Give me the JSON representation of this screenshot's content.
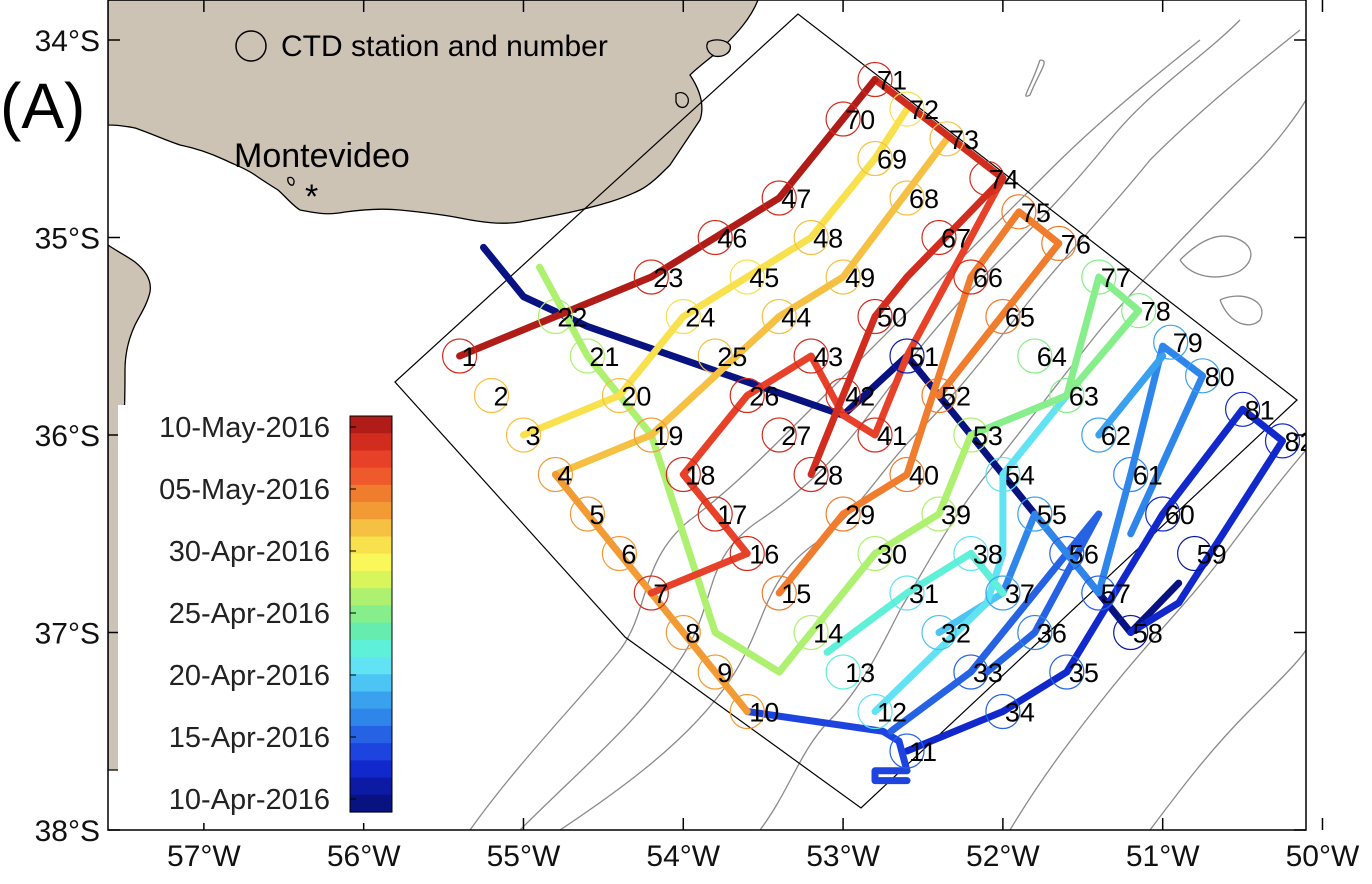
{
  "panel_label": "(A)",
  "legend": {
    "label": "CTD station and number"
  },
  "place_label": "Montevideo",
  "place_marker": "*",
  "axes": {
    "lon_range": [
      -57.6,
      -50.0
    ],
    "lat_range": [
      -38.0,
      -33.8
    ],
    "x_ticks": [
      {
        "lon": -57,
        "label": "57°W"
      },
      {
        "lon": -56,
        "label": "56°W"
      },
      {
        "lon": -55,
        "label": "55°W"
      },
      {
        "lon": -54,
        "label": "54°W"
      },
      {
        "lon": -53,
        "label": "53°W"
      },
      {
        "lon": -52,
        "label": "52°W"
      },
      {
        "lon": -51,
        "label": "51°W"
      },
      {
        "lon": -50,
        "label": "50°W"
      }
    ],
    "y_ticks": [
      {
        "lat": -34,
        "label": "34°S"
      },
      {
        "lat": -35,
        "label": "35°S"
      },
      {
        "lat": -36,
        "label": "36°S"
      },
      {
        "lat": -37,
        "label": "37°S"
      },
      {
        "lat": -38,
        "label": "38°S"
      }
    ]
  },
  "colorbar": {
    "labels": [
      "10-May-2016",
      "05-May-2016",
      "30-Apr-2016",
      "25-Apr-2016",
      "20-Apr-2016",
      "15-Apr-2016",
      "10-Apr-2016"
    ],
    "colors": [
      "#b01c18",
      "#d22c1e",
      "#e8412a",
      "#ee5a2b",
      "#f07c2e",
      "#f29b35",
      "#f6c042",
      "#f8e14c",
      "#f9f75a",
      "#d9f55c",
      "#aef170",
      "#86ee8a",
      "#65ecae",
      "#5ef0d8",
      "#62e3f3",
      "#4cc4f4",
      "#3aa1ef",
      "#2f86ea",
      "#2563e4",
      "#1d44de",
      "#1128cc",
      "#0c1aa4",
      "#081280"
    ],
    "colormap": "jet"
  },
  "colors": {
    "land": "#cdc3b4",
    "coast": "#000000",
    "contour": "#8a8a8a",
    "frame": "#000000"
  },
  "stations": [
    {
      "n": "1",
      "lon": -55.4,
      "lat": -35.6,
      "color": "#d22c1e"
    },
    {
      "n": "2",
      "lon": -55.2,
      "lat": -35.8,
      "color": "#f6c042"
    },
    {
      "n": "3",
      "lon": -55.0,
      "lat": -36.0,
      "color": "#f6c042"
    },
    {
      "n": "4",
      "lon": -54.8,
      "lat": -36.2,
      "color": "#f29b35"
    },
    {
      "n": "5",
      "lon": -54.6,
      "lat": -36.4,
      "color": "#f29b35"
    },
    {
      "n": "6",
      "lon": -54.4,
      "lat": -36.6,
      "color": "#f29b35"
    },
    {
      "n": "7",
      "lon": -54.2,
      "lat": -36.8,
      "color": "#d22c1e"
    },
    {
      "n": "8",
      "lon": -54.0,
      "lat": -37.0,
      "color": "#f29b35"
    },
    {
      "n": "9",
      "lon": -53.8,
      "lat": -37.2,
      "color": "#f29b35"
    },
    {
      "n": "10",
      "lon": -53.6,
      "lat": -37.4,
      "color": "#f29b35"
    },
    {
      "n": "11",
      "lon": -52.6,
      "lat": -37.6,
      "color": "#2563e4"
    },
    {
      "n": "12",
      "lon": -52.8,
      "lat": -37.4,
      "color": "#62e3f3"
    },
    {
      "n": "13",
      "lon": -53.0,
      "lat": -37.2,
      "color": "#5ef0d8"
    },
    {
      "n": "14",
      "lon": -53.2,
      "lat": -37.0,
      "color": "#aef170"
    },
    {
      "n": "15",
      "lon": -53.4,
      "lat": -36.8,
      "color": "#f07c2e"
    },
    {
      "n": "16",
      "lon": -53.6,
      "lat": -36.6,
      "color": "#d22c1e"
    },
    {
      "n": "17",
      "lon": -53.8,
      "lat": -36.4,
      "color": "#d22c1e"
    },
    {
      "n": "18",
      "lon": -54.0,
      "lat": -36.2,
      "color": "#d22c1e"
    },
    {
      "n": "19",
      "lon": -54.2,
      "lat": -36.0,
      "color": "#f29b35"
    },
    {
      "n": "20",
      "lon": -54.4,
      "lat": -35.8,
      "color": "#f6c042"
    },
    {
      "n": "21",
      "lon": -54.6,
      "lat": -35.6,
      "color": "#aef170"
    },
    {
      "n": "22",
      "lon": -54.8,
      "lat": -35.4,
      "color": "#aef170"
    },
    {
      "n": "23",
      "lon": -54.2,
      "lat": -35.2,
      "color": "#d22c1e"
    },
    {
      "n": "24",
      "lon": -54.0,
      "lat": -35.4,
      "color": "#f8e14c"
    },
    {
      "n": "25",
      "lon": -53.8,
      "lat": -35.6,
      "color": "#f6c042"
    },
    {
      "n": "26",
      "lon": -53.6,
      "lat": -35.8,
      "color": "#d22c1e"
    },
    {
      "n": "27",
      "lon": -53.4,
      "lat": -36.0,
      "color": "#d22c1e"
    },
    {
      "n": "28",
      "lon": -53.2,
      "lat": -36.2,
      "color": "#d22c1e"
    },
    {
      "n": "29",
      "lon": -53.0,
      "lat": -36.4,
      "color": "#f07c2e"
    },
    {
      "n": "30",
      "lon": -52.8,
      "lat": -36.6,
      "color": "#aef170"
    },
    {
      "n": "31",
      "lon": -52.6,
      "lat": -36.8,
      "color": "#62e3f3"
    },
    {
      "n": "32",
      "lon": -52.4,
      "lat": -37.0,
      "color": "#4cc4f4"
    },
    {
      "n": "33",
      "lon": -52.2,
      "lat": -37.2,
      "color": "#2563e4"
    },
    {
      "n": "34",
      "lon": -52.0,
      "lat": -37.4,
      "color": "#2563e4"
    },
    {
      "n": "35",
      "lon": -51.6,
      "lat": -37.2,
      "color": "#2563e4"
    },
    {
      "n": "36",
      "lon": -51.8,
      "lat": -37.0,
      "color": "#2f86ea"
    },
    {
      "n": "37",
      "lon": -52.0,
      "lat": -36.8,
      "color": "#3aa1ef"
    },
    {
      "n": "38",
      "lon": -52.2,
      "lat": -36.6,
      "color": "#62e3f3"
    },
    {
      "n": "39",
      "lon": -52.4,
      "lat": -36.4,
      "color": "#aef170"
    },
    {
      "n": "40",
      "lon": -52.6,
      "lat": -36.2,
      "color": "#f07c2e"
    },
    {
      "n": "41",
      "lon": -52.8,
      "lat": -36.0,
      "color": "#d22c1e"
    },
    {
      "n": "42",
      "lon": -53.0,
      "lat": -35.8,
      "color": "#d22c1e"
    },
    {
      "n": "43",
      "lon": -53.2,
      "lat": -35.6,
      "color": "#d22c1e"
    },
    {
      "n": "44",
      "lon": -53.4,
      "lat": -35.4,
      "color": "#f6c042"
    },
    {
      "n": "45",
      "lon": -53.6,
      "lat": -35.2,
      "color": "#f8e14c"
    },
    {
      "n": "46",
      "lon": -53.8,
      "lat": -35.0,
      "color": "#d22c1e"
    },
    {
      "n": "47",
      "lon": -53.4,
      "lat": -34.8,
      "color": "#d22c1e"
    },
    {
      "n": "48",
      "lon": -53.2,
      "lat": -35.0,
      "color": "#f6c042"
    },
    {
      "n": "49",
      "lon": -53.0,
      "lat": -35.2,
      "color": "#f6c042"
    },
    {
      "n": "50",
      "lon": -52.8,
      "lat": -35.4,
      "color": "#d22c1e"
    },
    {
      "n": "51",
      "lon": -52.6,
      "lat": -35.6,
      "color": "#0c1aa4"
    },
    {
      "n": "52",
      "lon": -52.4,
      "lat": -35.8,
      "color": "#f07c2e"
    },
    {
      "n": "53",
      "lon": -52.2,
      "lat": -36.0,
      "color": "#aef170"
    },
    {
      "n": "54",
      "lon": -52.0,
      "lat": -36.2,
      "color": "#62e3f3"
    },
    {
      "n": "55",
      "lon": -51.8,
      "lat": -36.4,
      "color": "#3aa1ef"
    },
    {
      "n": "56",
      "lon": -51.6,
      "lat": -36.6,
      "color": "#2563e4"
    },
    {
      "n": "57",
      "lon": -51.4,
      "lat": -36.8,
      "color": "#2563e4"
    },
    {
      "n": "58",
      "lon": -51.2,
      "lat": -37.0,
      "color": "#0c1aa4"
    },
    {
      "n": "59",
      "lon": -50.8,
      "lat": -36.6,
      "color": "#0c1aa4"
    },
    {
      "n": "60",
      "lon": -51.0,
      "lat": -36.4,
      "color": "#1128cc"
    },
    {
      "n": "61",
      "lon": -51.2,
      "lat": -36.2,
      "color": "#2f86ea"
    },
    {
      "n": "62",
      "lon": -51.4,
      "lat": -36.0,
      "color": "#3aa1ef"
    },
    {
      "n": "63",
      "lon": -51.6,
      "lat": -35.8,
      "color": "#86ee8a"
    },
    {
      "n": "64",
      "lon": -51.8,
      "lat": -35.6,
      "color": "#86ee8a"
    },
    {
      "n": "65",
      "lon": -52.0,
      "lat": -35.4,
      "color": "#f07c2e"
    },
    {
      "n": "66",
      "lon": -52.2,
      "lat": -35.2,
      "color": "#d22c1e"
    },
    {
      "n": "67",
      "lon": -52.4,
      "lat": -35.0,
      "color": "#d22c1e"
    },
    {
      "n": "68",
      "lon": -52.6,
      "lat": -34.8,
      "color": "#f6c042"
    },
    {
      "n": "69",
      "lon": -52.8,
      "lat": -34.6,
      "color": "#f6c042"
    },
    {
      "n": "70",
      "lon": -53.0,
      "lat": -34.4,
      "color": "#d22c1e"
    },
    {
      "n": "71",
      "lon": -52.8,
      "lat": -34.2,
      "color": "#d22c1e"
    },
    {
      "n": "72",
      "lon": -52.6,
      "lat": -34.35,
      "color": "#f8e14c"
    },
    {
      "n": "73",
      "lon": -52.35,
      "lat": -34.5,
      "color": "#f6c042"
    },
    {
      "n": "74",
      "lon": -52.1,
      "lat": -34.7,
      "color": "#d22c1e"
    },
    {
      "n": "75",
      "lon": -51.9,
      "lat": -34.87,
      "color": "#f07c2e"
    },
    {
      "n": "76",
      "lon": -51.65,
      "lat": -35.03,
      "color": "#f07c2e"
    },
    {
      "n": "77",
      "lon": -51.4,
      "lat": -35.2,
      "color": "#86ee8a"
    },
    {
      "n": "78",
      "lon": -51.15,
      "lat": -35.37,
      "color": "#86ee8a"
    },
    {
      "n": "79",
      "lon": -50.95,
      "lat": -35.53,
      "color": "#3aa1ef"
    },
    {
      "n": "80",
      "lon": -50.75,
      "lat": -35.7,
      "color": "#3aa1ef"
    },
    {
      "n": "81",
      "lon": -50.5,
      "lat": -35.87,
      "color": "#1128cc"
    },
    {
      "n": "82",
      "lon": -50.25,
      "lat": -36.03,
      "color": "#1128cc"
    }
  ],
  "tracks": [
    {
      "color": "#081280",
      "points": [
        [
          -55.25,
          -35.05
        ],
        [
          -55.0,
          -35.3
        ],
        [
          -54.6,
          -35.45
        ],
        [
          -53.0,
          -35.9
        ],
        [
          -52.6,
          -35.6
        ],
        [
          -51.6,
          -36.6
        ],
        [
          -51.2,
          -37.0
        ],
        [
          -50.9,
          -36.75
        ]
      ]
    },
    {
      "color": "#1128cc",
      "points": [
        [
          -52.6,
          -37.6
        ],
        [
          -52.0,
          -37.4
        ],
        [
          -51.6,
          -37.2
        ],
        [
          -51.0,
          -36.4
        ],
        [
          -50.5,
          -35.87
        ],
        [
          -50.25,
          -36.03
        ],
        [
          -50.9,
          -36.85
        ],
        [
          -51.2,
          -37.0
        ]
      ]
    },
    {
      "color": "#1d44de",
      "points": [
        [
          -53.6,
          -37.4
        ],
        [
          -52.75,
          -37.5
        ],
        [
          -52.65,
          -37.55
        ],
        [
          -52.6,
          -37.7
        ],
        [
          -52.8,
          -37.7
        ],
        [
          -52.8,
          -37.75
        ],
        [
          -52.6,
          -37.75
        ]
      ]
    },
    {
      "color": "#2563e4",
      "points": [
        [
          -52.7,
          -37.5
        ],
        [
          -52.2,
          -37.2
        ],
        [
          -51.6,
          -36.6
        ],
        [
          -51.4,
          -36.4
        ],
        [
          -51.8,
          -37.0
        ],
        [
          -52.1,
          -37.2
        ]
      ]
    },
    {
      "color": "#2f86ea",
      "points": [
        [
          -52.0,
          -36.8
        ],
        [
          -51.8,
          -36.4
        ],
        [
          -51.4,
          -36.8
        ],
        [
          -51.2,
          -36.2
        ],
        [
          -51.0,
          -35.55
        ],
        [
          -50.75,
          -35.7
        ],
        [
          -51.2,
          -36.5
        ]
      ]
    },
    {
      "color": "#3aa1ef",
      "points": [
        [
          -51.4,
          -36.0
        ],
        [
          -51.0,
          -35.6
        ]
      ]
    },
    {
      "color": "#4cc4f4",
      "points": [
        [
          -52.4,
          -37.0
        ],
        [
          -52.0,
          -36.8
        ],
        [
          -52.2,
          -36.6
        ]
      ]
    },
    {
      "color": "#62e3f3",
      "points": [
        [
          -52.8,
          -37.4
        ],
        [
          -52.1,
          -36.85
        ],
        [
          -52.0,
          -36.6
        ],
        [
          -52.0,
          -36.2
        ],
        [
          -51.6,
          -35.8
        ]
      ]
    },
    {
      "color": "#5ef0d8",
      "points": [
        [
          -53.1,
          -37.1
        ],
        [
          -52.6,
          -36.8
        ],
        [
          -52.2,
          -36.6
        ],
        [
          -52.0,
          -36.8
        ]
      ]
    },
    {
      "color": "#86ee8a",
      "points": [
        [
          -52.2,
          -36.0
        ],
        [
          -51.6,
          -35.8
        ],
        [
          -51.4,
          -35.2
        ],
        [
          -51.15,
          -35.37
        ],
        [
          -51.6,
          -35.8
        ]
      ]
    },
    {
      "color": "#aef170",
      "points": [
        [
          -54.9,
          -35.15
        ],
        [
          -54.6,
          -35.6
        ],
        [
          -54.2,
          -36.0
        ],
        [
          -53.8,
          -37.0
        ],
        [
          -53.4,
          -37.2
        ],
        [
          -52.8,
          -36.6
        ],
        [
          -52.4,
          -36.4
        ],
        [
          -52.2,
          -36.0
        ]
      ]
    },
    {
      "color": "#f8e14c",
      "points": [
        [
          -55.0,
          -36.0
        ],
        [
          -54.4,
          -35.8
        ],
        [
          -54.0,
          -35.4
        ],
        [
          -53.6,
          -35.2
        ],
        [
          -53.2,
          -35.0
        ],
        [
          -52.8,
          -34.6
        ],
        [
          -52.6,
          -34.35
        ]
      ]
    },
    {
      "color": "#f6c042",
      "points": [
        [
          -54.8,
          -36.2
        ],
        [
          -54.2,
          -36.0
        ],
        [
          -53.4,
          -35.4
        ],
        [
          -53.0,
          -35.2
        ],
        [
          -52.35,
          -34.5
        ]
      ]
    },
    {
      "color": "#f29b35",
      "points": [
        [
          -54.8,
          -36.2
        ],
        [
          -54.6,
          -36.4
        ],
        [
          -54.2,
          -36.8
        ],
        [
          -53.8,
          -37.2
        ],
        [
          -53.6,
          -37.4
        ]
      ]
    },
    {
      "color": "#f07c2e",
      "points": [
        [
          -53.4,
          -36.8
        ],
        [
          -53.0,
          -36.4
        ],
        [
          -52.6,
          -36.2
        ],
        [
          -52.2,
          -35.2
        ],
        [
          -51.9,
          -34.87
        ],
        [
          -51.65,
          -35.03
        ],
        [
          -52.4,
          -35.8
        ]
      ]
    },
    {
      "color": "#e8412a",
      "points": [
        [
          -54.2,
          -36.8
        ],
        [
          -53.6,
          -36.6
        ],
        [
          -53.8,
          -36.4
        ],
        [
          -54.0,
          -36.2
        ],
        [
          -53.6,
          -35.8
        ],
        [
          -53.2,
          -35.6
        ],
        [
          -53.0,
          -35.9
        ],
        [
          -52.8,
          -36.0
        ],
        [
          -52.6,
          -35.6
        ],
        [
          -52.2,
          -35.0
        ],
        [
          -52.0,
          -34.7
        ]
      ]
    },
    {
      "color": "#d22c1e",
      "points": [
        [
          -53.2,
          -36.2
        ],
        [
          -52.8,
          -35.4
        ],
        [
          -52.6,
          -35.2
        ],
        [
          -52.0,
          -34.7
        ],
        [
          -52.8,
          -34.2
        ]
      ]
    },
    {
      "color": "#b01c18",
      "points": [
        [
          -55.4,
          -35.6
        ],
        [
          -54.2,
          -35.2
        ],
        [
          -53.8,
          -35.0
        ],
        [
          -53.4,
          -34.8
        ],
        [
          -52.8,
          -34.2
        ]
      ]
    }
  ]
}
